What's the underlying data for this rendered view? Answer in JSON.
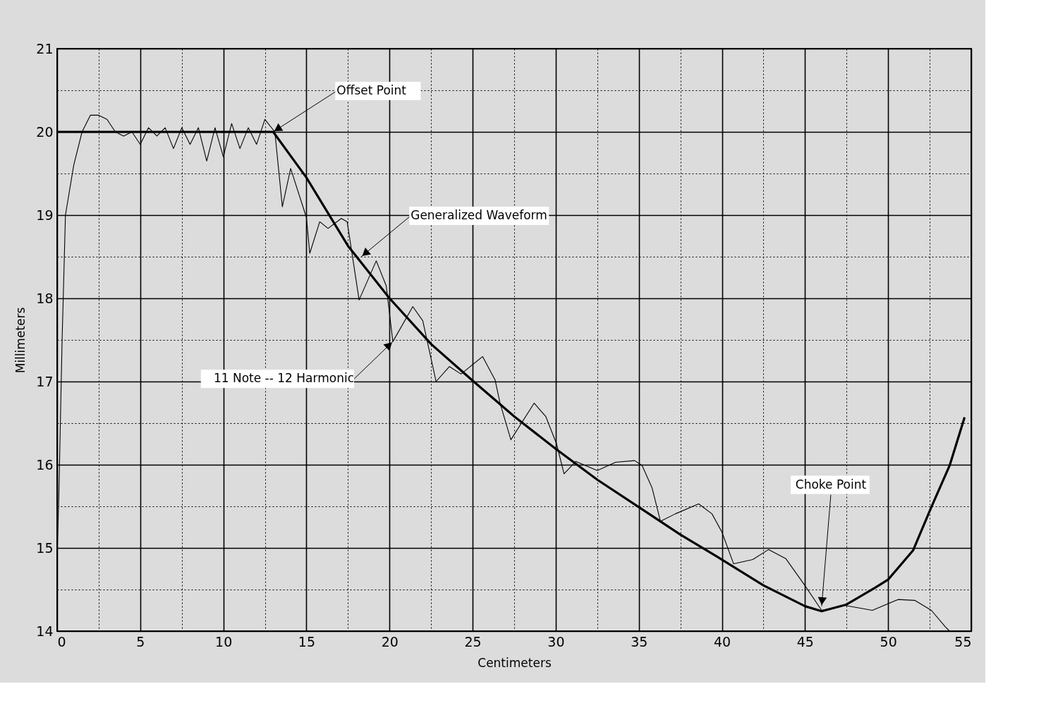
{
  "chart_data": {
    "type": "line",
    "xlabel": "Centimeters",
    "ylabel": "Millimeters",
    "xlim": [
      0,
      55
    ],
    "ylim": [
      14,
      21
    ],
    "xticks": [
      0,
      {
        "value": 2.5,
        "label": null
      },
      5,
      {
        "value": 7.5,
        "label": null
      },
      10,
      {
        "value": 12.5,
        "label": null
      },
      15,
      {
        "value": 17.5,
        "label": null
      },
      20,
      {
        "value": 22.5,
        "label": null
      },
      25,
      {
        "value": 27.5,
        "label": null
      },
      30,
      {
        "value": 32.5,
        "label": null
      },
      35,
      {
        "value": 37.5,
        "label": null
      },
      40,
      {
        "value": 42.5,
        "label": null
      },
      45,
      {
        "value": 47.5,
        "label": null
      },
      50,
      {
        "value": 52.5,
        "label": null
      },
      55
    ],
    "yticks": [
      14,
      {
        "value": 14.5,
        "label": null
      },
      15,
      {
        "value": 15.5,
        "label": null
      },
      16,
      {
        "value": 16.5,
        "label": null
      },
      17,
      {
        "value": 17.5,
        "label": null
      },
      18,
      {
        "value": 18.5,
        "label": null
      },
      19,
      {
        "value": 19.5,
        "label": null
      },
      20,
      {
        "value": 20.5,
        "label": null
      },
      21
    ],
    "grid": true,
    "marker": "none",
    "line_style": "solid",
    "series": [
      {
        "color": "#000000",
        "x": [
          0,
          0.1,
          0.3,
          0.5,
          1.0,
          1.5,
          2.0,
          2.5,
          3.0,
          3.5,
          4.0,
          4.5,
          5.0,
          5.5,
          6.0,
          6.5,
          7.0,
          7.5,
          8.0,
          8.5,
          9.0,
          9.5,
          10.0,
          10.5,
          11.0,
          11.5,
          12.0,
          12.5,
          13.1,
          13.55,
          14.05,
          15.0,
          15.2,
          15.8,
          16.3,
          17.1,
          17.45,
          18.17,
          19.2,
          19.8,
          20.2,
          21.4,
          22.0,
          22.8,
          23.6,
          24.3,
          25.6,
          26.35,
          26.65,
          27.3,
          28.7,
          29.4,
          30.05,
          30.5,
          31.2,
          32.5,
          33.6,
          34.75,
          35.2,
          35.8,
          36.3,
          37.2,
          38.6,
          39.4,
          40.0,
          40.7,
          41.85,
          42.8,
          43.85,
          44.95,
          46.0,
          47.4,
          49.05,
          50.6,
          51.6,
          52.6,
          53.45,
          53.7
        ],
        "values": [
          14.9,
          15.6,
          17.5,
          19.0,
          19.6,
          20.0,
          20.2,
          20.2,
          20.15,
          20.0,
          19.95,
          20.0,
          19.85,
          20.05,
          19.95,
          20.05,
          19.8,
          20.05,
          19.85,
          20.05,
          19.65,
          20.05,
          19.7,
          20.1,
          19.8,
          20.05,
          19.85,
          20.15,
          20.0,
          19.1,
          19.56,
          18.97,
          18.54,
          18.92,
          18.84,
          18.96,
          18.92,
          17.98,
          18.45,
          18.15,
          17.48,
          17.9,
          17.73,
          17.0,
          17.18,
          17.09,
          17.3,
          17.02,
          16.74,
          16.3,
          16.74,
          16.58,
          16.25,
          15.89,
          16.04,
          15.93,
          16.03,
          16.05,
          15.99,
          15.72,
          15.32,
          15.41,
          15.53,
          15.41,
          15.19,
          14.81,
          14.86,
          14.98,
          14.87,
          14.56,
          14.25,
          14.31,
          14.25,
          14.38,
          14.37,
          14.25,
          14.05,
          14.0
        ]
      },
      {
        "color": "#000000",
        "line_style": "solid",
        "x": [
          0,
          13,
          15,
          17.5,
          20,
          22.5,
          25,
          27.5,
          30,
          32.5,
          35,
          37.5,
          40,
          42.5,
          45,
          46,
          47.5,
          49.2,
          50,
          51.5,
          52.6,
          53.7,
          54.6
        ],
        "values": [
          20,
          20,
          19.45,
          18.63,
          18.0,
          17.45,
          17.01,
          16.58,
          16.19,
          15.82,
          15.49,
          15.16,
          14.86,
          14.55,
          14.3,
          14.24,
          14.32,
          14.52,
          14.62,
          14.97,
          15.49,
          15.99,
          16.57
        ]
      }
    ],
    "annotations": [
      {
        "text": "Offset Point",
        "x": 13,
        "y": 20
      },
      {
        "text": "Generalized Waveform",
        "x": 18.3,
        "y": 18.5
      },
      {
        "text": "11 Note -- 12 Harmonic",
        "x": 20.2,
        "y": 17.48
      },
      {
        "text": "Choke Point",
        "x": 46,
        "y": 14.3
      }
    ]
  }
}
